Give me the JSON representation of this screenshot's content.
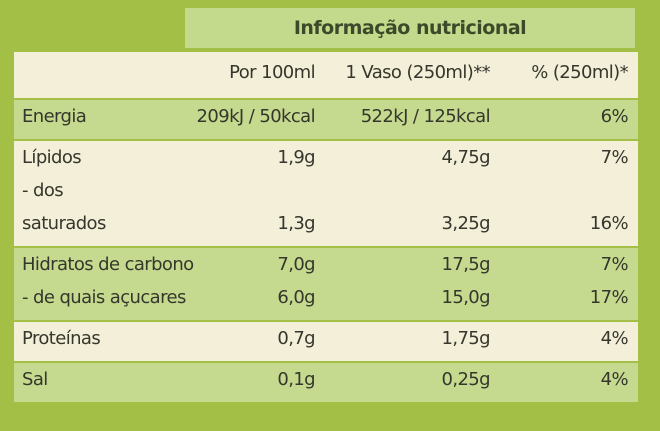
{
  "title": "Informação nutricional",
  "columns": [
    "Por 100ml",
    "1 Vaso (250ml)**",
    "% (250ml)*"
  ],
  "sections": [
    {
      "lines": [
        {
          "label": "Energia",
          "values": [
            "209kJ / 50kcal",
            "522kJ / 125kcal",
            "6%"
          ]
        }
      ]
    },
    {
      "lines": [
        {
          "label": "Lípidos",
          "values": [
            "1,9g",
            "4,75g",
            "7%"
          ]
        },
        {
          "label": "- dos"
        },
        {
          "label": "saturados",
          "values": [
            "1,3g",
            "3,25g",
            "16%"
          ]
        }
      ]
    },
    {
      "lines": [
        {
          "label": "Hidratos de carbono",
          "values": [
            "7,0g",
            "17,5g",
            "7%"
          ]
        },
        {
          "label": "- de quais açucares",
          "values": [
            "6,0g",
            "15,0g",
            "17%"
          ]
        }
      ]
    },
    {
      "lines": [
        {
          "label": "Proteínas",
          "values": [
            "0,7g",
            "1,75g",
            "4%"
          ]
        }
      ]
    },
    {
      "lines": [
        {
          "label": "Sal",
          "values": [
            "0,1g",
            "0,25g",
            "4%"
          ]
        }
      ]
    }
  ]
}
